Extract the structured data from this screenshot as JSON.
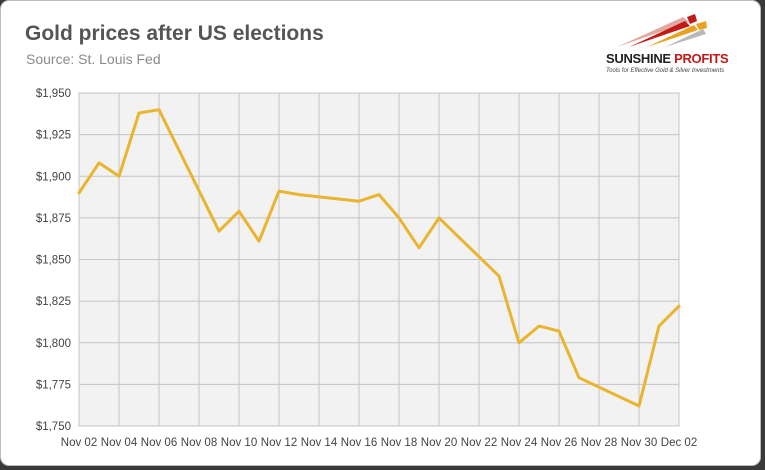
{
  "header": {
    "title": "Gold prices after US elections",
    "subtitle": "Source: St. Louis Fed"
  },
  "logo": {
    "icon": "sunshine-rays-icon",
    "name_part1": "SUNSHINE",
    "name_part2": "PROFITS",
    "tagline": "Tools for Effective Gold & Silver Investments",
    "colors": [
      "#c21a17",
      "#e9a21f",
      "#b8b8b8"
    ]
  },
  "chart_data": {
    "type": "line",
    "title": "Gold prices after US elections",
    "subtitle": "Source: St. Louis Fed",
    "xlabel": "",
    "ylabel": "",
    "ylim": [
      1750,
      1950
    ],
    "y_ticks": [
      1750,
      1775,
      1800,
      1825,
      1850,
      1875,
      1900,
      1925,
      1950
    ],
    "y_tick_labels": [
      "$1,750",
      "$1,775",
      "$1,800",
      "$1,825",
      "$1,850",
      "$1,875",
      "$1,900",
      "$1,925",
      "$1,950"
    ],
    "x_range": [
      "2020-11-02",
      "2020-12-02"
    ],
    "x_tick_labels": [
      "Nov 02",
      "Nov 04",
      "Nov 06",
      "Nov 08",
      "Nov 10",
      "Nov 12",
      "Nov 14",
      "Nov 16",
      "Nov 18",
      "Nov 20",
      "Nov 22",
      "Nov 24",
      "Nov 26",
      "Nov 28",
      "Nov 30",
      "Dec 02"
    ],
    "grid": true,
    "legend": "none",
    "line_color": "#e9b52f",
    "plot_background": "#f2f2f2",
    "series": [
      {
        "x": [
          "2020-11-02",
          "2020-11-03",
          "2020-11-04",
          "2020-11-05",
          "2020-11-06",
          "2020-11-09",
          "2020-11-10",
          "2020-11-11",
          "2020-11-12",
          "2020-11-13",
          "2020-11-16",
          "2020-11-17",
          "2020-11-18",
          "2020-11-19",
          "2020-11-20",
          "2020-11-23",
          "2020-11-24",
          "2020-11-25",
          "2020-11-26",
          "2020-11-27",
          "2020-11-30",
          "2020-12-01",
          "2020-12-02"
        ],
        "values": [
          1890,
          1908,
          1900,
          1938,
          1940,
          1867,
          1879,
          1861,
          1891,
          1889,
          1885,
          1889,
          1875,
          1857,
          1875,
          1840,
          1800,
          1810,
          1807,
          1779,
          1762,
          1810,
          1822
        ]
      }
    ]
  }
}
